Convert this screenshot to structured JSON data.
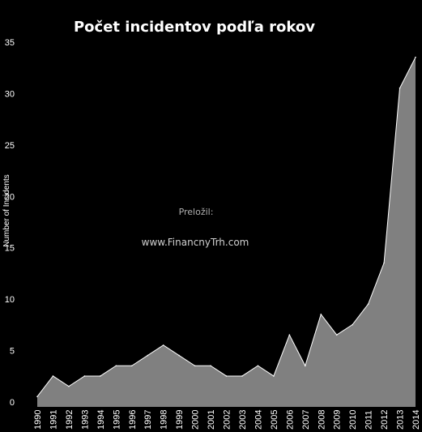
{
  "chart_data": {
    "type": "area",
    "title": "Počet incidentov podľa rokov",
    "xlabel": "",
    "ylabel": "Number of Incidents",
    "categories": [
      "1990",
      "1991",
      "1992",
      "1993",
      "1994",
      "1995",
      "1996",
      "1997",
      "1998",
      "1999",
      "2000",
      "2001",
      "2002",
      "2003",
      "2004",
      "2005",
      "2006",
      "2007",
      "2008",
      "2009",
      "2010",
      "2011",
      "2012",
      "2013",
      "2014"
    ],
    "values": [
      1,
      3,
      2,
      3,
      3,
      4,
      4,
      5,
      6,
      5,
      4,
      4,
      3,
      3,
      4,
      3,
      7,
      4,
      9,
      7,
      8,
      10,
      14,
      31,
      34
    ],
    "ylim": [
      0,
      35
    ],
    "yticks": [
      0,
      5,
      10,
      15,
      20,
      25,
      30,
      35
    ],
    "grid": false,
    "fill_color": "#808080",
    "line_color": "#ffffff",
    "background": "#000000"
  },
  "watermark": {
    "line1": "Preložil:",
    "line2": "www.FinancnyTrh.com"
  }
}
